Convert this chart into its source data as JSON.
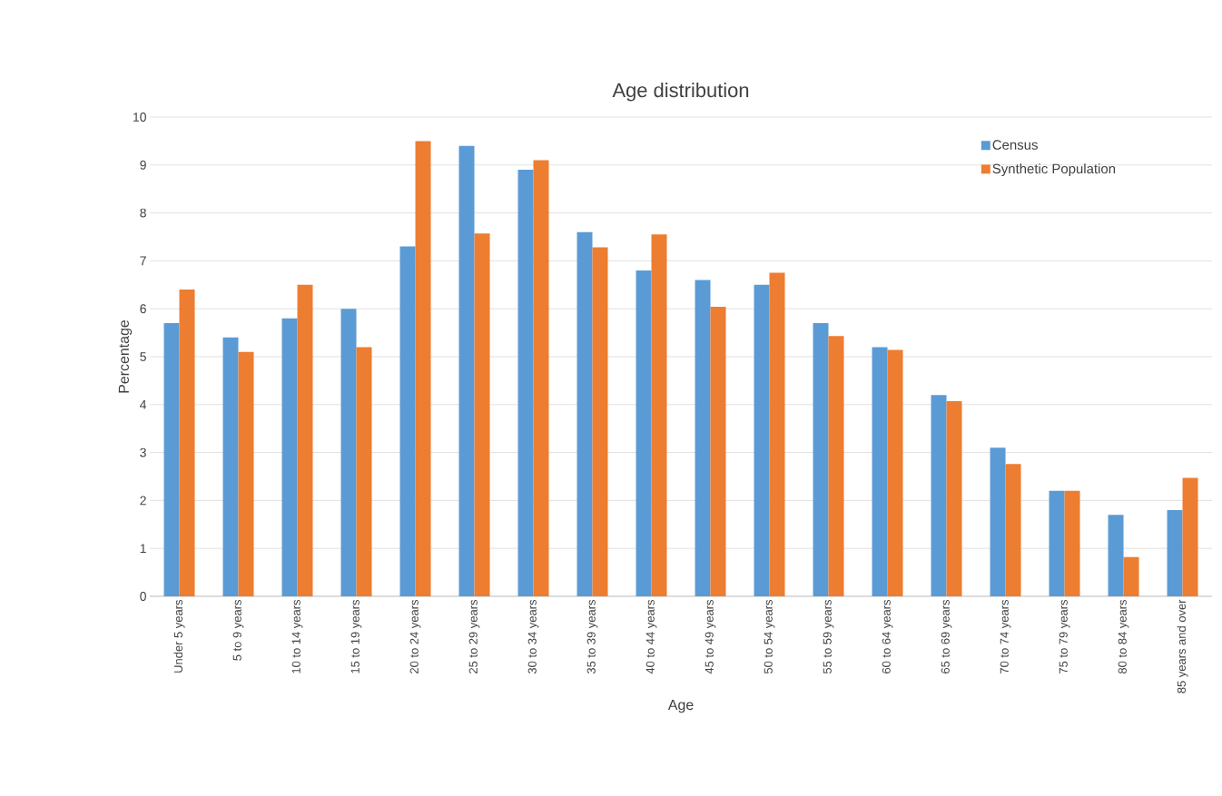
{
  "chart_data": {
    "type": "bar",
    "title": "Age distribution",
    "xlabel": "Age",
    "ylabel": "Percentage",
    "categories": [
      "Under 5 years",
      "5 to 9 years",
      "10 to 14 years",
      "15 to 19 years",
      "20 to 24 years",
      "25 to 29 years",
      "30 to 34 years",
      "35 to 39 years",
      "40 to 44 years",
      "45 to 49 years",
      "50 to 54 years",
      "55 to 59 years",
      "60 to 64 years",
      "65 to 69 years",
      "70 to 74 years",
      "75 to 79 years",
      "80 to 84 years",
      "85 years and over"
    ],
    "series": [
      {
        "name": "Census",
        "color": "#5b9bd5",
        "values": [
          5.7,
          5.4,
          5.8,
          6.0,
          7.3,
          9.4,
          8.9,
          7.6,
          6.8,
          6.6,
          6.5,
          5.7,
          5.2,
          4.2,
          3.1,
          2.2,
          1.7,
          1.8
        ]
      },
      {
        "name": "Synthetic Population",
        "color": "#ed7d31",
        "values": [
          6.4,
          5.1,
          6.5,
          5.2,
          9.5,
          7.57,
          9.1,
          7.28,
          7.55,
          6.04,
          6.75,
          5.43,
          5.14,
          4.07,
          2.76,
          2.2,
          0.82,
          2.47
        ]
      }
    ],
    "ylim": [
      0,
      10
    ],
    "yticks": [
      0,
      1,
      2,
      3,
      4,
      5,
      6,
      7,
      8,
      9,
      10
    ],
    "grid": "y",
    "legend": "top right"
  }
}
